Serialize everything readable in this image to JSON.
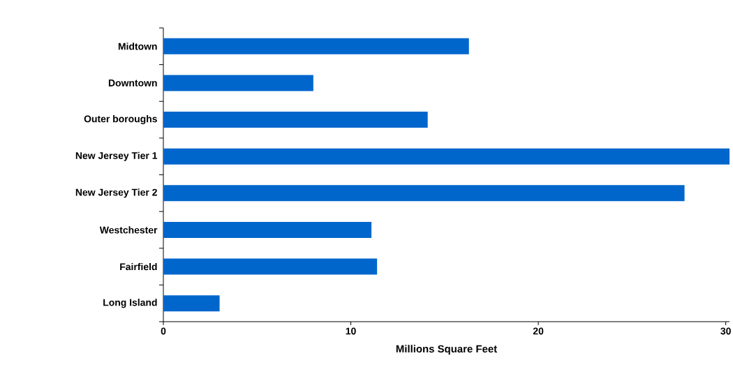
{
  "chart_data": {
    "type": "bar",
    "orientation": "horizontal",
    "xlabel": "Millions Square Feet",
    "categories": [
      "Midtown",
      "Downtown",
      "Outer boroughs",
      "New Jersey Tier 1",
      "New Jersey Tier 2",
      "Westchester",
      "Fairfield",
      "Long Island"
    ],
    "values": [
      16.3,
      8.0,
      14.1,
      30.2,
      27.8,
      11.1,
      11.4,
      3.0
    ],
    "color": "#0066cc",
    "xlim": [
      0,
      30.2
    ],
    "xticks": [
      0,
      10,
      20,
      30
    ]
  }
}
